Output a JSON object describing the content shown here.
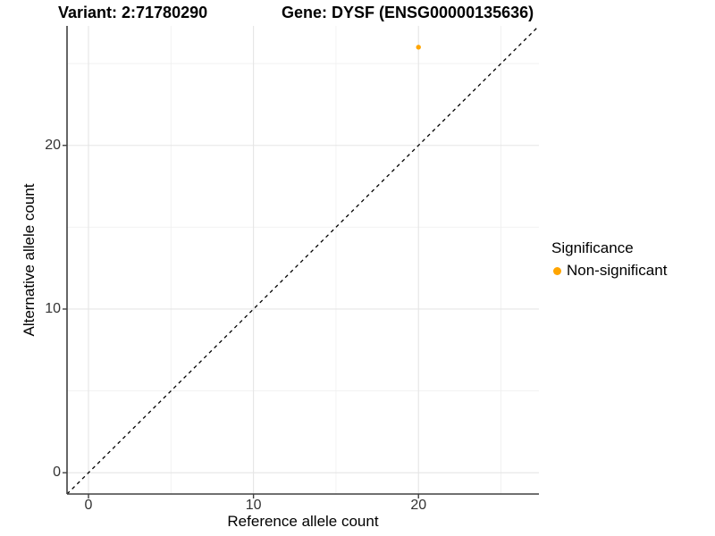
{
  "titles": {
    "variant": "Variant: 2:71780290",
    "gene": "Gene: DYSF (ENSG00000135636)"
  },
  "axes": {
    "x": {
      "title": "Reference allele count",
      "ticks": [
        {
          "label": "0",
          "value": 0
        },
        {
          "label": "10",
          "value": 10
        },
        {
          "label": "20",
          "value": 20
        }
      ]
    },
    "y": {
      "title": "Alternative allele count",
      "ticks": [
        {
          "label": "0",
          "value": 0
        },
        {
          "label": "10",
          "value": 10
        },
        {
          "label": "20",
          "value": 20
        }
      ]
    }
  },
  "legend": {
    "title": "Significance",
    "items": [
      {
        "label": "Non-significant",
        "color": "#FFA500"
      }
    ]
  },
  "colors": {
    "point": "#FFA500",
    "grid_major": "#E5E5E5",
    "grid_minor": "#F0F0F0",
    "axis_line": "#404040",
    "tick_label": "#333333",
    "reference_line": "#000000"
  },
  "chart_data": {
    "type": "scatter",
    "title": "Variant: 2:71780290 / Gene: DYSF (ENSG00000135636)",
    "xlabel": "Reference allele count",
    "ylabel": "Alternative allele count",
    "xlim": [
      -1.3,
      27.3
    ],
    "ylim": [
      -1.3,
      27.3
    ],
    "x_major_ticks": [
      0,
      10,
      20
    ],
    "y_major_ticks": [
      0,
      10,
      20
    ],
    "x_minor_gridlines": [
      5,
      15,
      25
    ],
    "y_minor_gridlines": [
      5,
      15,
      25
    ],
    "grid": "major and minor gridlines, light gray on white",
    "legend_title": "Significance",
    "legend_position": "right",
    "series": [
      {
        "name": "Non-significant",
        "color": "#FFA500",
        "points": [
          {
            "x": 20,
            "y": 26
          }
        ]
      }
    ],
    "annotations": [
      {
        "type": "abline",
        "label": "identity line y = x",
        "style": "dashed",
        "color": "#000000"
      }
    ]
  }
}
